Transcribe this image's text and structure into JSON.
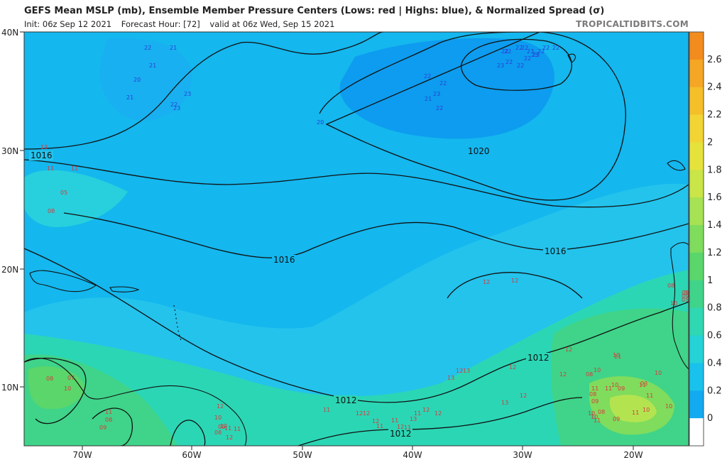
{
  "header": {
    "title": "GEFS Mean MSLP (mb), Ensemble Member Pressure Centers (Lows: red | Highs: blue), & Normalized Spread (σ)",
    "init": "Init: 06z Sep 12 2021",
    "forecast_hour": "Forecast Hour: [72]",
    "valid": "valid at 06z Wed, Sep 15 2021",
    "brand": "TROPICALTIDBITS.COM"
  },
  "axes": {
    "lat_labels": [
      "40N",
      "30N",
      "20N",
      "10N"
    ],
    "lon_labels": [
      "70W",
      "60W",
      "50W",
      "40W",
      "30W",
      "20W"
    ]
  },
  "isobars": {
    "labels": [
      "1016",
      "1020",
      "1016",
      "1016",
      "1012",
      "1012",
      "1012"
    ]
  },
  "colorbar": {
    "labels": [
      "2.6",
      "2.4",
      "2.2",
      "2",
      "1.8",
      "1.6",
      "1.4",
      "1.2",
      "1",
      "0.8",
      "0.6",
      "0.4",
      "0.2",
      "0"
    ],
    "colors": [
      "#f28c1e",
      "#f4a624",
      "#f5bf2a",
      "#f2d435",
      "#e6e23c",
      "#c9e548",
      "#a6e253",
      "#7fdc5d",
      "#5ad66a",
      "#3fd489",
      "#2fd7b2",
      "#25d2d6",
      "#19c2ec",
      "#12aaf0",
      "#ffffff"
    ]
  },
  "members": {
    "highs": [
      "22",
      "21",
      "21",
      "20",
      "21",
      "23",
      "22",
      "23",
      "20",
      "22",
      "22",
      "21",
      "23",
      "22",
      "22",
      "22",
      "22",
      "22",
      "23",
      "23",
      "22",
      "22",
      "22",
      "23",
      "22",
      "22",
      "22",
      "23"
    ],
    "lows": [
      "13",
      "11",
      "11",
      "05",
      "08",
      "08",
      "07",
      "10",
      "09",
      "08",
      "11",
      "12",
      "10",
      "09",
      "08",
      "12",
      "11",
      "12",
      "11",
      "11",
      "12",
      "12",
      "12",
      "12",
      "11",
      "11",
      "11",
      "11",
      "12",
      "13",
      "12",
      "13",
      "12",
      "13",
      "12",
      "12",
      "12",
      "13",
      "12",
      "12",
      "12",
      "08",
      "10",
      "11",
      "11",
      "10",
      "09",
      "09",
      "08",
      "08",
      "10",
      "10",
      "11",
      "11",
      "11",
      "10",
      "10",
      "09",
      "03",
      "08",
      "10",
      "09",
      "09",
      "05",
      "09",
      "11",
      "10",
      "10",
      "11"
    ]
  }
}
